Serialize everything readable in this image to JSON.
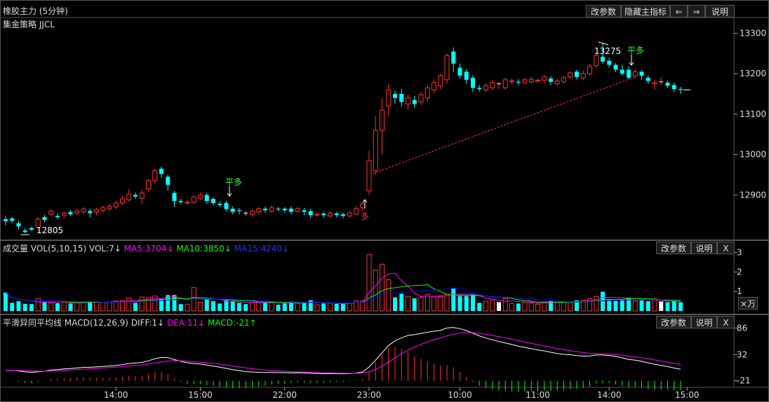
{
  "header": {
    "title": "橡胶主力 (5分钟)",
    "strategy": "集金策略 JJCL",
    "buttons": {
      "params": "改参数",
      "hide_main": "隐藏主指标",
      "prev": "⇐",
      "next": "⇒",
      "help": "说明"
    }
  },
  "volume_panel": {
    "name": "成交量",
    "indicator": "VOL(5,10,15)",
    "vol": "VOL:7↓",
    "ma5": "MA5:3704↓",
    "ma10": "MA10:3850↓",
    "ma15": "MA15:4240↓",
    "unit": "×万",
    "buttons": {
      "params": "改参数",
      "help": "说明",
      "close": "X"
    }
  },
  "macd_panel": {
    "name": "平滑异同平均线",
    "indicator": "MACD(12,26,9)",
    "diff": "DIFF:1↓",
    "dea": "DEA:11↓",
    "macd": "MACD:-21↑",
    "buttons": {
      "params": "改参数",
      "help": "说明",
      "close": "X"
    }
  },
  "colors": {
    "up": "#ff3030",
    "down": "#00ffff",
    "ma5": "#ff00ff",
    "ma10": "#00ff00",
    "ma15": "#0000ff",
    "signal": "#ff3030",
    "pinghold": "#33ff33"
  },
  "annotations": {
    "low_label": "12805",
    "high_label": "13275",
    "ping_duo_1": "平多",
    "ping_duo_2": "平多",
    "duo": "多"
  },
  "chart_data": [
    {
      "type": "candlestick",
      "title": "橡胶主力 (5分钟)",
      "y_ticks": [
        12900,
        13000,
        13100,
        13200,
        13300
      ],
      "ylim": [
        12800,
        13320
      ],
      "x_ticks": [
        "14:00",
        "15:00",
        "22:00",
        "23:00",
        "10:00",
        "11:00",
        "14:00",
        "15:00"
      ],
      "candles": [
        [
          12840,
          12835,
          12848,
          12825
        ],
        [
          12842,
          12836,
          12846,
          12830
        ],
        [
          12830,
          12822,
          12836,
          12815
        ],
        [
          12812,
          12808,
          12818,
          12805
        ],
        [
          12818,
          12814,
          12822,
          12810
        ],
        [
          12820,
          12840,
          12845,
          12815
        ],
        [
          12845,
          12838,
          12850,
          12832
        ],
        [
          12852,
          12860,
          12865,
          12848
        ],
        [
          12848,
          12845,
          12855,
          12840
        ],
        [
          12850,
          12855,
          12860,
          12842
        ],
        [
          12858,
          12852,
          12862,
          12848
        ],
        [
          12855,
          12860,
          12866,
          12850
        ],
        [
          12858,
          12865,
          12870,
          12852
        ],
        [
          12860,
          12855,
          12866,
          12845
        ],
        [
          12858,
          12864,
          12868,
          12850
        ],
        [
          12862,
          12868,
          12874,
          12856
        ],
        [
          12866,
          12872,
          12878,
          12860
        ],
        [
          12870,
          12880,
          12886,
          12864
        ],
        [
          12880,
          12890,
          12898,
          12875
        ],
        [
          12888,
          12902,
          12915,
          12884
        ],
        [
          12900,
          12896,
          12906,
          12890
        ],
        [
          12892,
          12905,
          12912,
          12878
        ],
        [
          12915,
          12935,
          12940,
          12908
        ],
        [
          12935,
          12960,
          12965,
          12928
        ],
        [
          12965,
          12952,
          12970,
          12942
        ],
        [
          12945,
          12925,
          12950,
          12910
        ],
        [
          12905,
          12885,
          12910,
          12870
        ],
        [
          12885,
          12882,
          12890,
          12878
        ],
        [
          12880,
          12882,
          12888,
          12876
        ],
        [
          12882,
          12895,
          12900,
          12878
        ],
        [
          12892,
          12900,
          12906,
          12888
        ],
        [
          12900,
          12885,
          12905,
          12878
        ],
        [
          12890,
          12880,
          12895,
          12874
        ],
        [
          12878,
          12875,
          12884,
          12870
        ],
        [
          12880,
          12865,
          12885,
          12860
        ],
        [
          12866,
          12858,
          12872,
          12852
        ],
        [
          12862,
          12860,
          12868,
          12852
        ],
        [
          12855,
          12854,
          12860,
          12848
        ],
        [
          12852,
          12860,
          12865,
          12846
        ],
        [
          12858,
          12866,
          12870,
          12852
        ],
        [
          12866,
          12862,
          12872,
          12856
        ],
        [
          12860,
          12868,
          12874,
          12855
        ],
        [
          12866,
          12864,
          12870,
          12860
        ],
        [
          12866,
          12862,
          12870,
          12856
        ],
        [
          12866,
          12858,
          12872,
          12852
        ],
        [
          12860,
          12866,
          12870,
          12855
        ],
        [
          12862,
          12858,
          12868,
          12850
        ],
        [
          12860,
          12850,
          12866,
          12842
        ],
        [
          12850,
          12852,
          12856,
          12846
        ],
        [
          12854,
          12850,
          12858,
          12844
        ],
        [
          12848,
          12855,
          12860,
          12845
        ],
        [
          12854,
          12850,
          12858,
          12845
        ],
        [
          12852,
          12848,
          12856,
          12842
        ],
        [
          12848,
          12855,
          12860,
          12845
        ],
        [
          12852,
          12866,
          12872,
          12850
        ],
        [
          12868,
          12878,
          12882,
          12860
        ],
        [
          12910,
          12985,
          13010,
          12900
        ],
        [
          12960,
          13060,
          13095,
          12950
        ],
        [
          13060,
          13110,
          13140,
          13000
        ],
        [
          13120,
          13160,
          13175,
          13095
        ],
        [
          13150,
          13140,
          13158,
          13125
        ],
        [
          13150,
          13130,
          13162,
          13118
        ],
        [
          13125,
          13140,
          13148,
          13112
        ],
        [
          13135,
          13125,
          13145,
          13115
        ],
        [
          13130,
          13148,
          13155,
          13122
        ],
        [
          13140,
          13165,
          13172,
          13130
        ],
        [
          13160,
          13178,
          13186,
          13152
        ],
        [
          13170,
          13195,
          13200,
          13162
        ],
        [
          13185,
          13245,
          13250,
          13175
        ],
        [
          13255,
          13225,
          13265,
          13205
        ],
        [
          13215,
          13195,
          13225,
          13188
        ],
        [
          13205,
          13185,
          13212,
          13175
        ],
        [
          13190,
          13165,
          13196,
          13155
        ],
        [
          13165,
          13162,
          13172,
          13156
        ],
        [
          13160,
          13170,
          13176,
          13155
        ],
        [
          13165,
          13178,
          13184,
          13160
        ],
        [
          13175,
          13175,
          13180,
          13162
        ],
        [
          13165,
          13185,
          13190,
          13160
        ],
        [
          13180,
          13182,
          13188,
          13174
        ],
        [
          13180,
          13178,
          13186,
          13172
        ],
        [
          13178,
          13185,
          13190,
          13172
        ],
        [
          13180,
          13186,
          13192,
          13176
        ],
        [
          13182,
          13184,
          13188,
          13176
        ],
        [
          13184,
          13192,
          13196,
          13178
        ],
        [
          13188,
          13180,
          13194,
          13172
        ],
        [
          13175,
          13182,
          13188,
          13170
        ],
        [
          13180,
          13190,
          13195,
          13176
        ],
        [
          13192,
          13202,
          13206,
          13188
        ],
        [
          13205,
          13192,
          13210,
          13186
        ],
        [
          13190,
          13200,
          13208,
          13184
        ],
        [
          13200,
          13218,
          13224,
          13195
        ],
        [
          13220,
          13245,
          13250,
          13214
        ],
        [
          13242,
          13230,
          13275,
          13225
        ],
        [
          13232,
          13222,
          13240,
          13215
        ],
        [
          13222,
          13210,
          13226,
          13204
        ],
        [
          13210,
          13200,
          13222,
          13196
        ],
        [
          13210,
          13190,
          13218,
          13186
        ],
        [
          13195,
          13205,
          13212,
          13190
        ],
        [
          13205,
          13195,
          13208,
          13185
        ],
        [
          13190,
          13182,
          13196,
          13175
        ],
        [
          13175,
          13178,
          13185,
          13160
        ],
        [
          13180,
          13180,
          13192,
          13172
        ],
        [
          13178,
          13170,
          13182,
          13164
        ],
        [
          13172,
          13162,
          13178,
          13155
        ],
        [
          13162,
          13160,
          13168,
          13150
        ]
      ],
      "last_price": 13160,
      "signal_line": {
        "from": 12950,
        "to": 13192
      }
    },
    {
      "type": "bar",
      "title": "成交量 VOL(5,10,15)",
      "unit": "×万",
      "y_ticks": [
        1,
        2,
        3
      ],
      "ylim": [
        0,
        3.2
      ],
      "values_ref": "volume derived per candle",
      "series": [
        {
          "name": "MA5",
          "color": "#ff00ff"
        },
        {
          "name": "MA10",
          "color": "#00ff00"
        },
        {
          "name": "MA15",
          "color": "#0000ff"
        }
      ]
    },
    {
      "type": "line",
      "title": "MACD(12,26,9)",
      "y_ticks": [
        -21,
        32,
        86
      ],
      "ylim": [
        -30,
        95
      ],
      "series": [
        {
          "name": "DIFF",
          "color": "#ffffff"
        },
        {
          "name": "DEA",
          "color": "#ff00ff"
        },
        {
          "name": "MACD",
          "color": "#ff3030"
        }
      ]
    }
  ]
}
